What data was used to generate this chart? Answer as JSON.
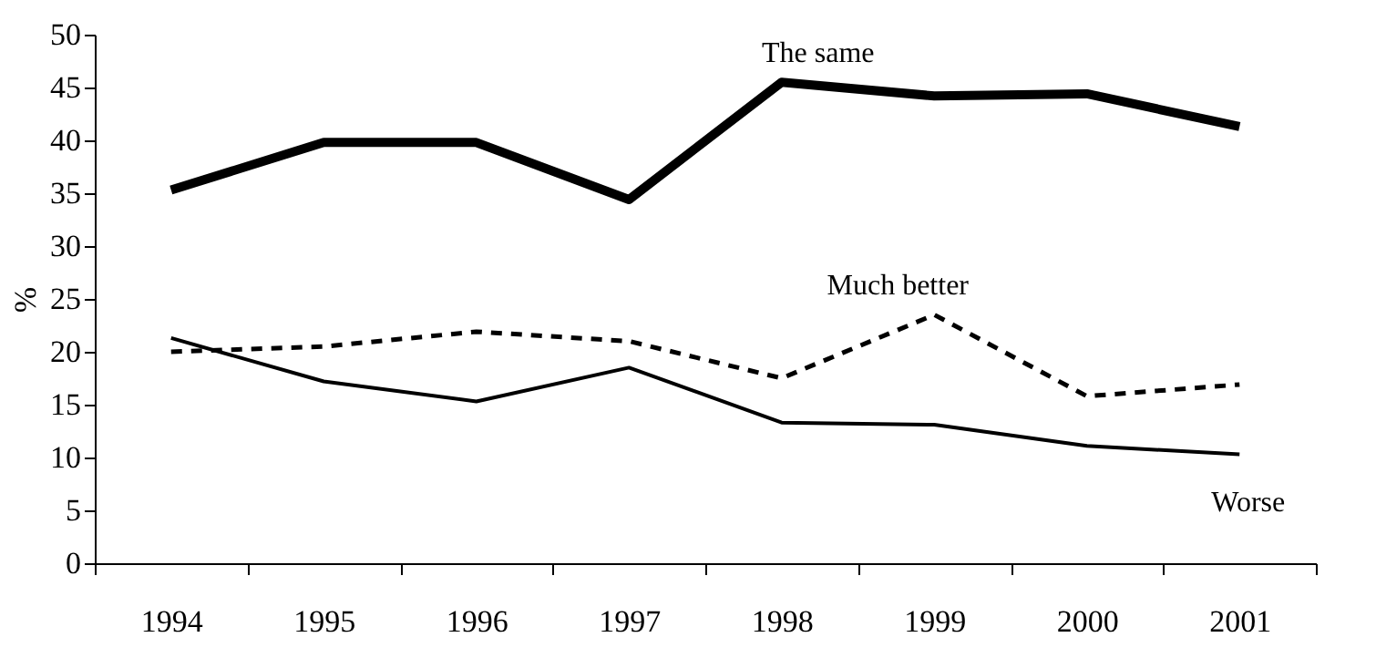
{
  "chart_data": {
    "type": "line",
    "ylabel": "%",
    "categories": [
      "1994",
      "1995",
      "1996",
      "1997",
      "1998",
      "1999",
      "2000",
      "2001"
    ],
    "ylim": [
      0,
      50
    ],
    "yticks": [
      0,
      5,
      10,
      15,
      20,
      25,
      30,
      35,
      40,
      45,
      50
    ],
    "grid": false,
    "marker": "none",
    "series": [
      {
        "name": "The same",
        "color": "#000000",
        "line_style": "solid",
        "values": [
          35.3,
          39.8,
          39.8,
          34.4,
          45.5,
          44.2,
          44.4,
          41.3
        ]
      },
      {
        "name": "Much better",
        "color": "#000000",
        "line_style": "dashed",
        "values": [
          20.0,
          20.5,
          21.9,
          21.0,
          17.5,
          23.5,
          15.8,
          16.9
        ]
      },
      {
        "name": "Worse",
        "color": "#000000",
        "line_style": "solid",
        "values": [
          21.3,
          17.2,
          15.3,
          18.5,
          13.3,
          13.1,
          11.1,
          10.3
        ]
      }
    ]
  }
}
